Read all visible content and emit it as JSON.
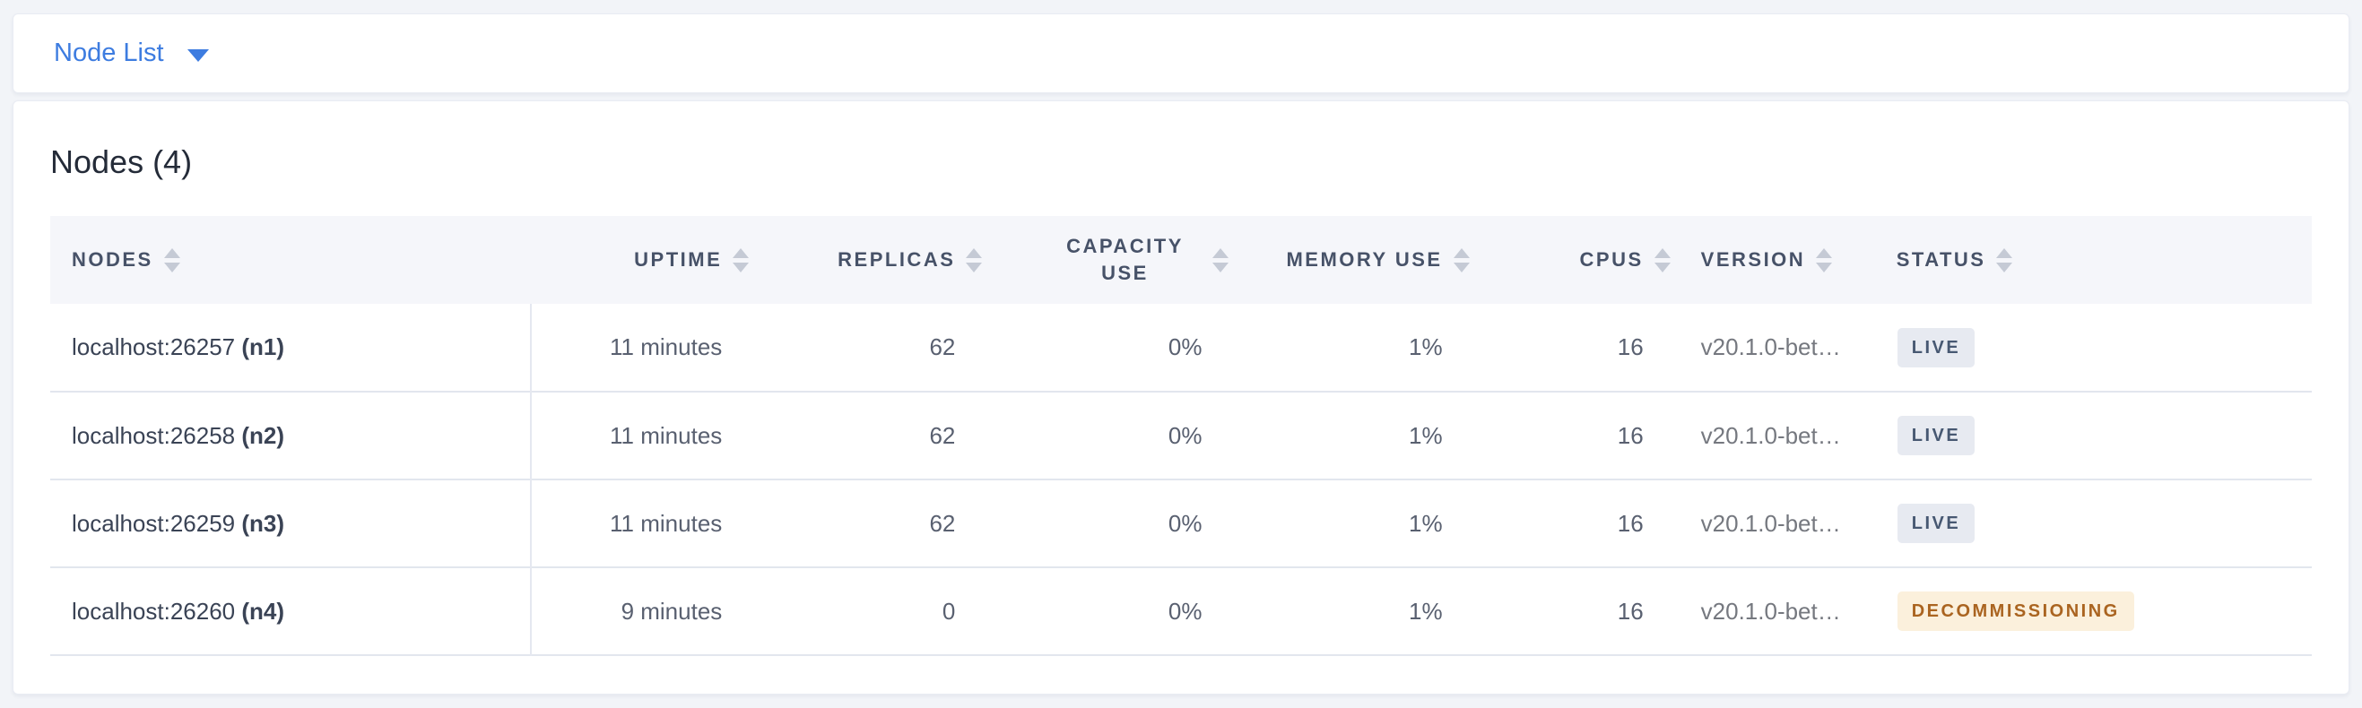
{
  "view_selector": {
    "label": "Node List"
  },
  "panel": {
    "title": "Nodes (4)"
  },
  "table": {
    "columns": [
      {
        "key": "nodes",
        "label": "NODES",
        "align": "left"
      },
      {
        "key": "uptime",
        "label": "UPTIME",
        "align": "right"
      },
      {
        "key": "replicas",
        "label": "REPLICAS",
        "align": "right"
      },
      {
        "key": "capacity_use",
        "label": "CAPACITY USE",
        "align": "right",
        "wrap": true
      },
      {
        "key": "memory_use",
        "label": "MEMORY USE",
        "align": "right"
      },
      {
        "key": "cpus",
        "label": "CPUS",
        "align": "right"
      },
      {
        "key": "version",
        "label": "VERSION",
        "align": "left"
      },
      {
        "key": "status",
        "label": "STATUS",
        "align": "left"
      }
    ],
    "rows": [
      {
        "nodes": "localhost:26257",
        "node_id": "(n1)",
        "uptime": "11 minutes",
        "replicas": "62",
        "capacity_use": "0%",
        "memory_use": "1%",
        "cpus": "16",
        "version": "v20.1.0-bet…",
        "status": "LIVE",
        "status_type": "live"
      },
      {
        "nodes": "localhost:26258",
        "node_id": "(n2)",
        "uptime": "11 minutes",
        "replicas": "62",
        "capacity_use": "0%",
        "memory_use": "1%",
        "cpus": "16",
        "version": "v20.1.0-bet…",
        "status": "LIVE",
        "status_type": "live"
      },
      {
        "nodes": "localhost:26259",
        "node_id": "(n3)",
        "uptime": "11 minutes",
        "replicas": "62",
        "capacity_use": "0%",
        "memory_use": "1%",
        "cpus": "16",
        "version": "v20.1.0-bet…",
        "status": "LIVE",
        "status_type": "live"
      },
      {
        "nodes": "localhost:26260",
        "node_id": "(n4)",
        "uptime": "9 minutes",
        "replicas": "0",
        "capacity_use": "0%",
        "memory_use": "1%",
        "cpus": "16",
        "version": "v20.1.0-bet…",
        "status": "DECOMMISSIONING",
        "status_type": "decommissioning"
      }
    ]
  },
  "colors": {
    "accent_blue": "#3d7ce0",
    "live_badge_bg": "#e7eaf1",
    "live_badge_text": "#475872",
    "decommissioning_badge_bg": "#fbf0dc",
    "decommissioning_badge_text": "#aa6420"
  }
}
